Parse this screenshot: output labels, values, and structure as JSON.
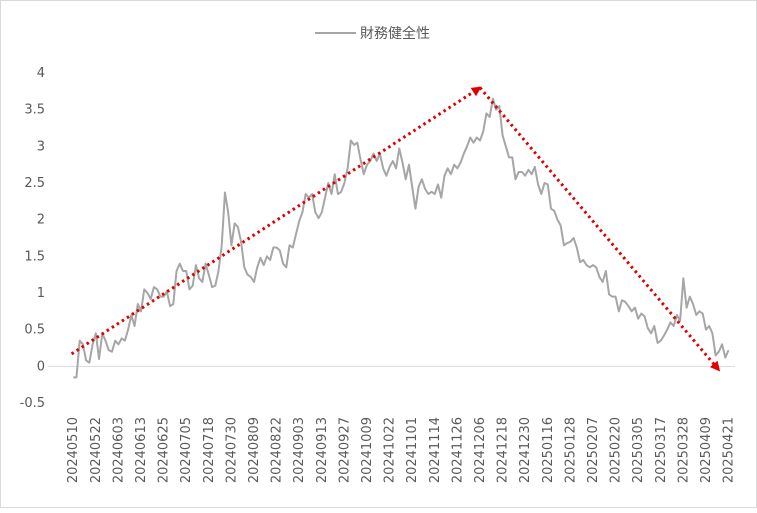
{
  "chart_data": {
    "type": "line",
    "title": "",
    "legend": {
      "position": "top",
      "entries": [
        "財務健全性"
      ]
    },
    "xlabel": "",
    "ylabel": "",
    "ylim": [
      -0.5,
      4
    ],
    "y_ticks": [
      "-0.5",
      "0",
      "0.5",
      "1",
      "1.5",
      "2",
      "2.5",
      "3",
      "3.5",
      "4"
    ],
    "grid": false,
    "x_tick_labels": [
      "20240510",
      "20240522",
      "20240603",
      "20240613",
      "20240625",
      "20240705",
      "20240718",
      "20240730",
      "20240809",
      "20240822",
      "20240903",
      "20240913",
      "20240927",
      "20241009",
      "20241022",
      "20241101",
      "20241114",
      "20241126",
      "20241206",
      "20241218",
      "20241230",
      "20250116",
      "20250128",
      "20250207",
      "20250220",
      "20250305",
      "20250317",
      "20250328",
      "20250409",
      "20250421"
    ],
    "colors": {
      "series": "#a6a6a6",
      "trend": "#e00000",
      "axis": "#d9d9d9",
      "text": "#595959"
    },
    "series": [
      {
        "name": "財務健全性",
        "values": [
          [
            0,
            -0.15
          ],
          [
            1,
            -0.15
          ],
          [
            2,
            0.35
          ],
          [
            3,
            0.3
          ],
          [
            4,
            0.08
          ],
          [
            5,
            0.05
          ],
          [
            6,
            0.3
          ],
          [
            7,
            0.45
          ],
          [
            8,
            0.1
          ],
          [
            9,
            0.45
          ],
          [
            10,
            0.35
          ],
          [
            11,
            0.22
          ],
          [
            12,
            0.2
          ],
          [
            13,
            0.35
          ],
          [
            14,
            0.3
          ],
          [
            15,
            0.38
          ],
          [
            16,
            0.35
          ],
          [
            17,
            0.5
          ],
          [
            18,
            0.7
          ],
          [
            19,
            0.55
          ],
          [
            20,
            0.85
          ],
          [
            21,
            0.75
          ],
          [
            22,
            1.05
          ],
          [
            23,
            1.0
          ],
          [
            24,
            0.92
          ],
          [
            25,
            1.08
          ],
          [
            26,
            1.05
          ],
          [
            27,
            0.95
          ],
          [
            28,
            0.95
          ],
          [
            29,
            1.02
          ],
          [
            30,
            0.82
          ],
          [
            31,
            0.85
          ],
          [
            32,
            1.3
          ],
          [
            33,
            1.4
          ],
          [
            34,
            1.3
          ],
          [
            35,
            1.3
          ],
          [
            36,
            1.05
          ],
          [
            37,
            1.1
          ],
          [
            38,
            1.38
          ],
          [
            39,
            1.2
          ],
          [
            40,
            1.15
          ],
          [
            41,
            1.4
          ],
          [
            42,
            1.25
          ],
          [
            43,
            1.08
          ],
          [
            44,
            1.1
          ],
          [
            45,
            1.3
          ],
          [
            46,
            1.65
          ],
          [
            47,
            2.37
          ],
          [
            48,
            2.1
          ],
          [
            49,
            1.65
          ],
          [
            50,
            1.95
          ],
          [
            51,
            1.9
          ],
          [
            52,
            1.7
          ],
          [
            53,
            1.35
          ],
          [
            54,
            1.25
          ],
          [
            55,
            1.22
          ],
          [
            56,
            1.15
          ],
          [
            57,
            1.35
          ],
          [
            58,
            1.48
          ],
          [
            59,
            1.38
          ],
          [
            60,
            1.5
          ],
          [
            61,
            1.45
          ],
          [
            62,
            1.62
          ],
          [
            63,
            1.62
          ],
          [
            64,
            1.58
          ],
          [
            65,
            1.4
          ],
          [
            66,
            1.35
          ],
          [
            67,
            1.65
          ],
          [
            68,
            1.62
          ],
          [
            69,
            1.8
          ],
          [
            70,
            1.98
          ],
          [
            71,
            2.1
          ],
          [
            72,
            2.35
          ],
          [
            73,
            2.3
          ],
          [
            74,
            2.35
          ],
          [
            75,
            2.1
          ],
          [
            76,
            2.02
          ],
          [
            77,
            2.1
          ],
          [
            78,
            2.3
          ],
          [
            79,
            2.5
          ],
          [
            80,
            2.35
          ],
          [
            81,
            2.62
          ],
          [
            82,
            2.35
          ],
          [
            83,
            2.38
          ],
          [
            84,
            2.5
          ],
          [
            85,
            2.7
          ],
          [
            86,
            3.08
          ],
          [
            87,
            3.02
          ],
          [
            88,
            3.05
          ],
          [
            89,
            2.82
          ],
          [
            90,
            2.62
          ],
          [
            91,
            2.75
          ],
          [
            92,
            2.8
          ],
          [
            93,
            2.9
          ],
          [
            94,
            2.8
          ],
          [
            95,
            2.9
          ],
          [
            96,
            2.7
          ],
          [
            97,
            2.6
          ],
          [
            98,
            2.72
          ],
          [
            99,
            2.8
          ],
          [
            100,
            2.7
          ],
          [
            101,
            2.97
          ],
          [
            102,
            2.78
          ],
          [
            103,
            2.55
          ],
          [
            104,
            2.75
          ],
          [
            105,
            2.45
          ],
          [
            106,
            2.15
          ],
          [
            107,
            2.45
          ],
          [
            108,
            2.55
          ],
          [
            109,
            2.42
          ],
          [
            110,
            2.35
          ],
          [
            111,
            2.38
          ],
          [
            112,
            2.35
          ],
          [
            113,
            2.48
          ],
          [
            114,
            2.3
          ],
          [
            115,
            2.6
          ],
          [
            116,
            2.7
          ],
          [
            117,
            2.62
          ],
          [
            118,
            2.75
          ],
          [
            119,
            2.7
          ],
          [
            120,
            2.78
          ],
          [
            121,
            2.9
          ],
          [
            122,
            3.0
          ],
          [
            123,
            3.12
          ],
          [
            124,
            3.05
          ],
          [
            125,
            3.12
          ],
          [
            126,
            3.08
          ],
          [
            127,
            3.2
          ],
          [
            128,
            3.45
          ],
          [
            129,
            3.4
          ],
          [
            130,
            3.65
          ],
          [
            131,
            3.5
          ],
          [
            132,
            3.55
          ],
          [
            133,
            3.15
          ],
          [
            134,
            3.0
          ],
          [
            135,
            2.85
          ],
          [
            136,
            2.85
          ],
          [
            137,
            2.55
          ],
          [
            138,
            2.65
          ],
          [
            139,
            2.65
          ],
          [
            140,
            2.6
          ],
          [
            141,
            2.68
          ],
          [
            142,
            2.62
          ],
          [
            143,
            2.72
          ],
          [
            144,
            2.48
          ],
          [
            145,
            2.35
          ],
          [
            146,
            2.5
          ],
          [
            147,
            2.48
          ],
          [
            148,
            2.15
          ],
          [
            149,
            2.12
          ],
          [
            150,
            2.0
          ],
          [
            151,
            1.92
          ],
          [
            152,
            1.65
          ],
          [
            153,
            1.68
          ],
          [
            154,
            1.7
          ],
          [
            155,
            1.75
          ],
          [
            156,
            1.62
          ],
          [
            157,
            1.42
          ],
          [
            158,
            1.45
          ],
          [
            159,
            1.38
          ],
          [
            160,
            1.35
          ],
          [
            161,
            1.38
          ],
          [
            162,
            1.35
          ],
          [
            163,
            1.22
          ],
          [
            164,
            1.15
          ],
          [
            165,
            1.3
          ],
          [
            166,
            0.98
          ],
          [
            167,
            0.95
          ],
          [
            168,
            0.95
          ],
          [
            169,
            0.75
          ],
          [
            170,
            0.9
          ],
          [
            171,
            0.88
          ],
          [
            172,
            0.82
          ],
          [
            173,
            0.75
          ],
          [
            174,
            0.8
          ],
          [
            175,
            0.65
          ],
          [
            176,
            0.72
          ],
          [
            177,
            0.68
          ],
          [
            178,
            0.52
          ],
          [
            179,
            0.45
          ],
          [
            180,
            0.55
          ],
          [
            181,
            0.32
          ],
          [
            182,
            0.35
          ],
          [
            183,
            0.42
          ],
          [
            184,
            0.5
          ],
          [
            185,
            0.6
          ],
          [
            186,
            0.55
          ],
          [
            187,
            0.7
          ],
          [
            188,
            0.62
          ],
          [
            189,
            1.2
          ],
          [
            190,
            0.8
          ],
          [
            191,
            0.95
          ],
          [
            192,
            0.85
          ],
          [
            193,
            0.7
          ],
          [
            194,
            0.75
          ],
          [
            195,
            0.72
          ],
          [
            196,
            0.5
          ],
          [
            197,
            0.55
          ],
          [
            198,
            0.45
          ],
          [
            199,
            0.15
          ],
          [
            200,
            0.2
          ],
          [
            201,
            0.3
          ],
          [
            202,
            0.12
          ],
          [
            203,
            0.22
          ]
        ]
      }
    ],
    "annotations": [
      {
        "type": "arrow",
        "style": "dotted",
        "color": "#e00000",
        "from": [
          -0.5,
          0.17
        ],
        "to": [
          126,
          3.8
        ]
      },
      {
        "type": "arrow",
        "style": "dotted",
        "color": "#e00000",
        "from": [
          126,
          3.8
        ],
        "to": [
          200,
          -0.05
        ]
      }
    ]
  }
}
